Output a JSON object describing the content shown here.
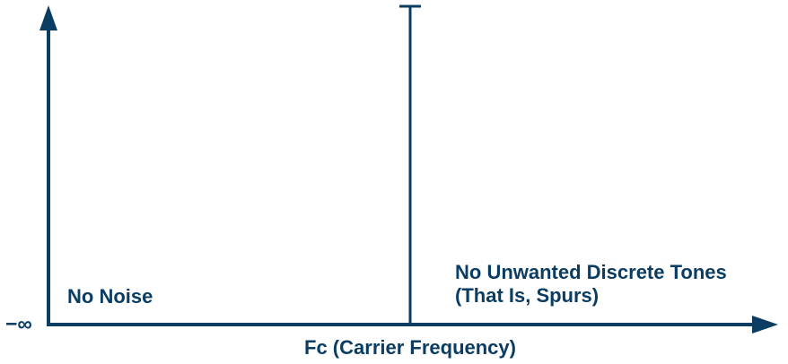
{
  "colors": {
    "ink": "#0b3d63",
    "background": "#ffffff"
  },
  "diagram": {
    "y_axis_label": "−∞",
    "x_axis_label": "Fc (Carrier Frequency)",
    "left_annotation": "No Noise",
    "right_annotation_line1": "No Unwanted Discrete Tones",
    "right_annotation_line2": "(That Is, Spurs)"
  }
}
